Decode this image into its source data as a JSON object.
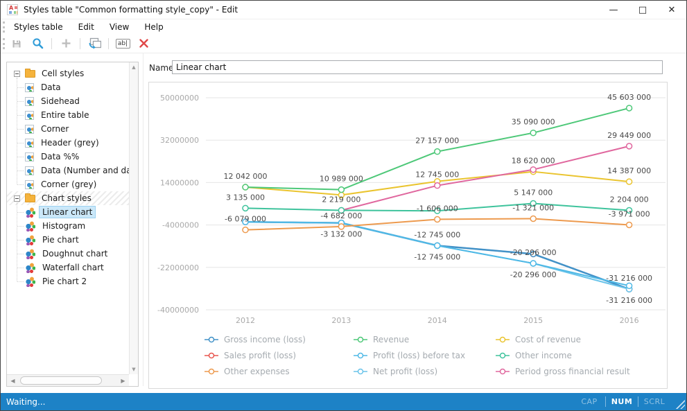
{
  "window": {
    "title": "Styles table \"Common formatting style_copy\" - Edit",
    "controls": {
      "minimize": "—",
      "maximize": "□",
      "close": "✕"
    }
  },
  "menu_bar": {
    "items": [
      "Styles table",
      "Edit",
      "View",
      "Help"
    ]
  },
  "toolbar": {
    "rename_glyph": "ab|",
    "buttons": [
      {
        "icon": "save-icon",
        "enabled": false
      },
      {
        "icon": "find-icon",
        "enabled": true
      },
      {
        "icon": "add-icon",
        "enabled": false
      },
      {
        "icon": "duplicate-icon",
        "enabled": true
      },
      {
        "icon": "rename-icon",
        "enabled": true
      },
      {
        "icon": "delete-icon",
        "enabled": true
      }
    ]
  },
  "sidebar": {
    "groups": [
      {
        "label": "Cell styles",
        "icon": "folder-icon",
        "item_icon": "cell-style-icon",
        "hatched": false,
        "items": [
          {
            "label": "Data"
          },
          {
            "label": "Sidehead"
          },
          {
            "label": "Entire table"
          },
          {
            "label": "Corner"
          },
          {
            "label": "Header (grey)"
          },
          {
            "label": "Data %%"
          },
          {
            "label": "Data (Number and dash"
          },
          {
            "label": "Corner (grey)"
          }
        ]
      },
      {
        "label": "Chart styles",
        "icon": "folder-icon",
        "item_icon": "chart-style-icon",
        "hatched": true,
        "items": [
          {
            "label": "Linear chart",
            "selected": true
          },
          {
            "label": "Histogram"
          },
          {
            "label": "Pie chart"
          },
          {
            "label": "Doughnut chart"
          },
          {
            "label": "Waterfall chart"
          },
          {
            "label": "Pie chart 2"
          }
        ]
      }
    ]
  },
  "name_field": {
    "label": "Name:",
    "value": "Linear chart"
  },
  "status_bar": {
    "text": "Waiting...",
    "indicators": [
      {
        "label": "CAP",
        "active": false
      },
      {
        "label": "NUM",
        "active": true
      },
      {
        "label": "SCRL",
        "active": false
      }
    ]
  },
  "chart_data": {
    "type": "line",
    "x": [
      "2012",
      "2013",
      "2014",
      "2015",
      "2016"
    ],
    "ylim": [
      -40000000,
      50000000
    ],
    "yticks": [
      50000000,
      32000000,
      14000000,
      -4000000,
      -22000000,
      -40000000
    ],
    "grid": true,
    "legend_position": "bottom",
    "axis_color": "#a9a9a9",
    "grid_color": "#e5e5e5",
    "label_color": "#4a4a4a",
    "legend_text_color": "#a5abb0",
    "series": [
      {
        "name": "Sales profit (loss)",
        "color": "#e8554e",
        "width": 2,
        "values": [
          -2700000,
          -3132000,
          -12745000,
          -16300000,
          -31216000
        ]
      },
      {
        "name": "Gross income (loss)",
        "color": "#4292c8",
        "width": 2.5,
        "values": [
          -2700000,
          -3132000,
          -12745000,
          -16300000,
          -31216000
        ]
      },
      {
        "name": "Net profit (loss)",
        "color": "#6ac4ea",
        "width": 2,
        "values": [
          -2700000,
          -3132000,
          -12745000,
          -20296000,
          -31216000
        ]
      },
      {
        "name": "Profit (loss) before tax",
        "color": "#4fb9e6",
        "width": 2,
        "values": [
          -2700000,
          -3132000,
          -12745000,
          -20296000,
          -29800000
        ]
      },
      {
        "name": "Other expenses",
        "color": "#ed9a4e",
        "width": 2,
        "values": [
          -6079000,
          -4682000,
          -1606000,
          -1321000,
          -3971000
        ]
      },
      {
        "name": "Cost of revenue",
        "color": "#eac42e",
        "width": 2,
        "values": [
          12042000,
          8700000,
          14500000,
          18620000,
          14387000
        ]
      },
      {
        "name": "Period gross financial result",
        "color": "#e0679e",
        "width": 2,
        "values": [
          null,
          2219000,
          12745000,
          19500000,
          29449000
        ]
      },
      {
        "name": "Other income",
        "color": "#3ec39c",
        "width": 2,
        "values": [
          3135000,
          2219000,
          2000000,
          5147000,
          2204000
        ]
      },
      {
        "name": "Revenue",
        "color": "#4dc878",
        "width": 2,
        "values": [
          12042000,
          10989000,
          27157000,
          35090000,
          45603000
        ]
      }
    ],
    "legend_order": [
      "Gross income (loss)",
      "Revenue",
      "Cost of revenue",
      "Sales profit (loss)",
      "Profit (loss) before tax",
      "Other income",
      "Other expenses",
      "Net profit (loss)",
      "Period gross financial result"
    ],
    "point_labels": [
      {
        "text": "12 042 000",
        "series": "Revenue",
        "year": "2012",
        "position": "above"
      },
      {
        "text": "3 135 000",
        "series": "Other income",
        "year": "2012",
        "position": "above"
      },
      {
        "text": "-6 079 000",
        "series": "Other expenses",
        "year": "2012",
        "position": "above"
      },
      {
        "text": "10 989 000",
        "series": "Revenue",
        "year": "2013",
        "position": "above"
      },
      {
        "text": "2 219 000",
        "series": "Other income",
        "year": "2013",
        "position": "above"
      },
      {
        "text": "-4 682 000",
        "series": "Other expenses",
        "year": "2013",
        "position": "above"
      },
      {
        "text": "-3 132 000",
        "series": "Profit (loss) before tax",
        "year": "2013",
        "position": "below"
      },
      {
        "text": "27 157 000",
        "series": "Revenue",
        "year": "2014",
        "position": "above"
      },
      {
        "text": "12 745 000",
        "series": "Period gross financial result",
        "year": "2014",
        "position": "above"
      },
      {
        "text": "-1 606 000",
        "series": "Other expenses",
        "year": "2014",
        "position": "above"
      },
      {
        "text": "-12 745 000",
        "series": "Profit (loss) before tax",
        "year": "2014",
        "position": "above"
      },
      {
        "text": "-12 745 000",
        "series": "Net profit (loss)",
        "year": "2014",
        "position": "below"
      },
      {
        "text": "35 090 000",
        "series": "Revenue",
        "year": "2015",
        "position": "above"
      },
      {
        "text": "18 620 000",
        "series": "Cost of revenue",
        "year": "2015",
        "position": "above"
      },
      {
        "text": "5 147 000",
        "series": "Other income",
        "year": "2015",
        "position": "above"
      },
      {
        "text": "-1 321 000",
        "series": "Other expenses",
        "year": "2015",
        "position": "above"
      },
      {
        "text": "-20 296 000",
        "series": "Profit (loss) before tax",
        "year": "2015",
        "position": "above"
      },
      {
        "text": "-20 296 000",
        "series": "Net profit (loss)",
        "year": "2015",
        "position": "below"
      },
      {
        "text": "45 603 000",
        "series": "Revenue",
        "year": "2016",
        "position": "above"
      },
      {
        "text": "29 449 000",
        "series": "Period gross financial result",
        "year": "2016",
        "position": "above"
      },
      {
        "text": "14 387 000",
        "series": "Cost of revenue",
        "year": "2016",
        "position": "above"
      },
      {
        "text": "2 204 000",
        "series": "Other income",
        "year": "2016",
        "position": "above"
      },
      {
        "text": "-3 971 000",
        "series": "Other expenses",
        "year": "2016",
        "position": "above"
      },
      {
        "text": "-31 216 000",
        "series": "Net profit (loss)",
        "year": "2016",
        "position": "above"
      },
      {
        "text": "-31 216 000",
        "series": "Net profit (loss)",
        "year": "2016",
        "position": "below"
      }
    ]
  }
}
